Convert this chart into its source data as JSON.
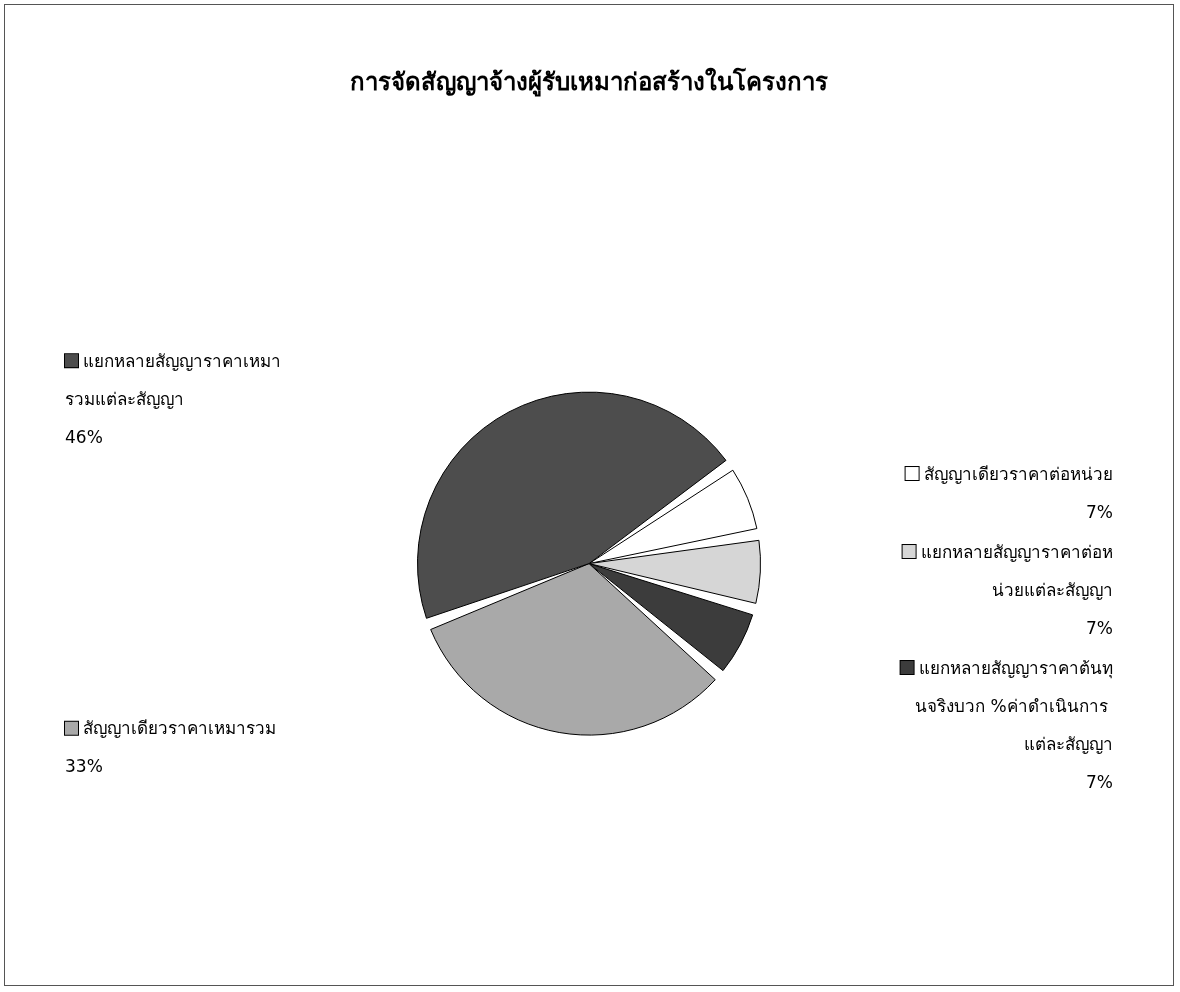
{
  "chart_data": {
    "type": "pie",
    "title": "การจัดสัญญาจ้างผู้รับเหมาก่อสร้างในโครงการ",
    "categories": [
      "สัญญาเดียวราคาต่อหน่วย",
      "แยกหลายสัญญาราคาต่อหน่วยแต่ละสัญญา",
      "แยกหลายสัญญาราคาต้นทุนจริงบวก %ค่าดำเนินการ แต่ละสัญญา",
      "สัญญาเดียวราคาเหมารวม",
      "แยกหลายสัญญาราคาเหมารวมแต่ละสัญญา"
    ],
    "values": [
      7,
      7,
      7,
      33,
      46
    ],
    "value_labels": [
      "7%",
      "7%",
      "7%",
      "33%",
      "46%"
    ],
    "colors": [
      "#ffffff",
      "#d6d6d6",
      "#3c3c3c",
      "#a9a9a9",
      "#4d4d4d"
    ],
    "legend": "right"
  }
}
